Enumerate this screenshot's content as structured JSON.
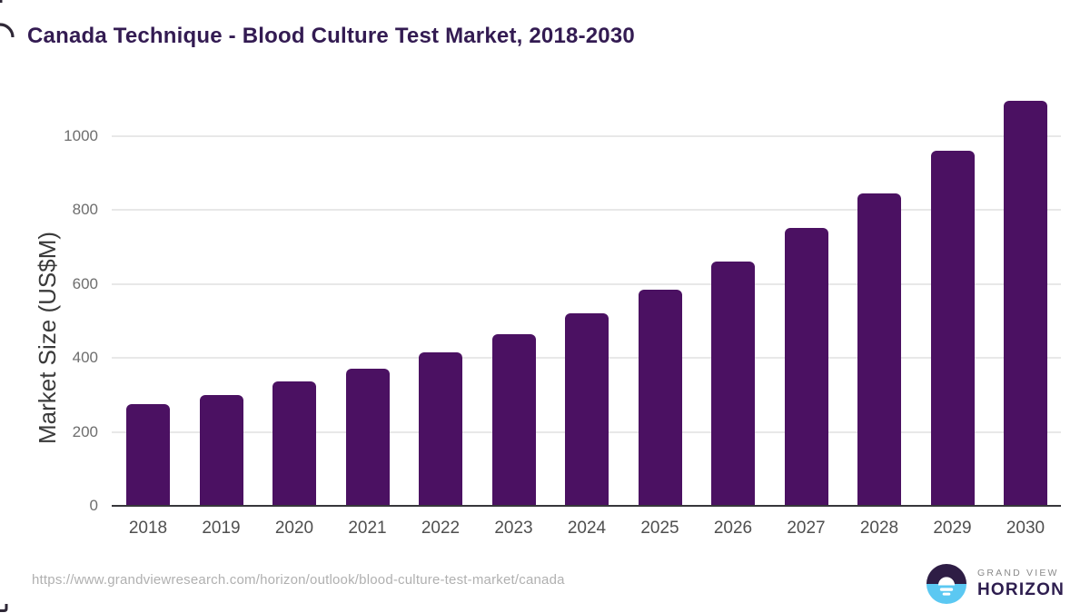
{
  "title": "Canada Technique - Blood Culture Test Market, 2018-2030",
  "chart_data": {
    "type": "bar",
    "title": "Canada Technique - Blood Culture Test Market, 2018-2030",
    "categories": [
      "2018",
      "2019",
      "2020",
      "2021",
      "2022",
      "2023",
      "2024",
      "2025",
      "2026",
      "2027",
      "2028",
      "2029",
      "2030"
    ],
    "values": [
      275,
      300,
      335,
      370,
      415,
      465,
      520,
      585,
      660,
      750,
      845,
      960,
      1095
    ],
    "xlabel": "",
    "ylabel": "Market Size (US$M)",
    "ylim": [
      0,
      1120
    ],
    "yticks": [
      0,
      200,
      400,
      600,
      800,
      1000
    ],
    "grid": "horizontal-only",
    "legend_position": "none",
    "bar_color": "#4B1162"
  },
  "colors": {
    "title_text": "#331B52",
    "bar_fill": "#4B1162",
    "gridline": "#E8E8E8",
    "axis_line": "#37373B",
    "tick_text": "#6E6E6E",
    "url_text": "#B0B0B0",
    "logo_dark": "#2E1D45",
    "logo_blue": "#5BC8F2",
    "logo_purple_text": "#2E1E4F"
  },
  "footer": {
    "url": "https://www.grandviewresearch.com/horizon/outlook/blood-culture-test-market/canada",
    "logo": {
      "line1": "GRAND VIEW",
      "line2": "HORIZON",
      "icon": "horizon-sun-icon"
    }
  }
}
